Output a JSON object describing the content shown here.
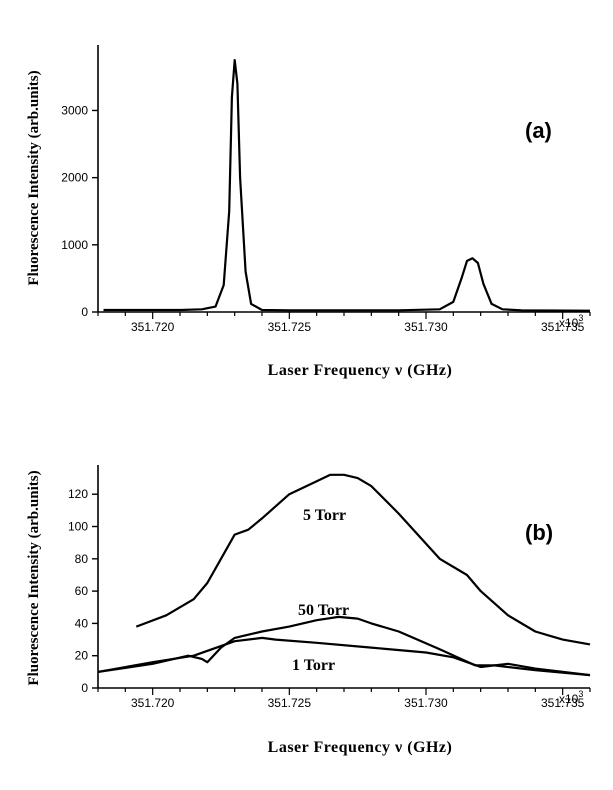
{
  "chart_data": [
    {
      "type": "line",
      "panel_label": "(a)",
      "xlabel": "Laser  Frequency  ν  (GHz)",
      "ylabel": "Fluorescence Intensity (arb.units)",
      "xlim": [
        351.718,
        351.736
      ],
      "ylim": [
        0,
        3900
      ],
      "x_ticks": [
        "351.720",
        "351.725",
        "351.730",
        "351.735"
      ],
      "x_multiplier": "x10",
      "x_multiplier_exp": "3",
      "y_ticks": [
        "0",
        "1000",
        "2000",
        "3000"
      ],
      "series": [
        {
          "x": [
            351.7182,
            351.72,
            351.721,
            351.7218,
            351.7223,
            351.7226,
            351.7228,
            351.7229,
            351.723,
            351.7231,
            351.7232,
            351.7234,
            351.7236,
            351.724,
            351.725,
            351.727,
            351.729,
            351.7305,
            351.731,
            351.7313,
            351.7315,
            351.7317,
            351.7319,
            351.7321,
            351.7324,
            351.7328,
            351.7335,
            351.736
          ],
          "y": [
            30,
            30,
            30,
            40,
            80,
            400,
            1500,
            3200,
            3750,
            3400,
            2000,
            600,
            120,
            30,
            25,
            25,
            25,
            40,
            150,
            500,
            760,
            800,
            730,
            420,
            120,
            40,
            25,
            20
          ]
        }
      ]
    },
    {
      "type": "line",
      "panel_label": "(b)",
      "xlabel": "Laser  Frequency  ν  (GHz)",
      "ylabel": "Fluorescence Intensity (arb.units)",
      "xlim": [
        351.718,
        351.736
      ],
      "ylim": [
        0,
        135
      ],
      "x_ticks": [
        "351.720",
        "351.725",
        "351.730",
        "351.735"
      ],
      "x_multiplier": "x10",
      "x_multiplier_exp": "3",
      "y_ticks": [
        "0",
        "20",
        "40",
        "60",
        "80",
        "100",
        "120"
      ],
      "series": [
        {
          "name": "5  Torr",
          "x": [
            351.7194,
            351.7205,
            351.7215,
            351.722,
            351.7225,
            351.723,
            351.7235,
            351.724,
            351.725,
            351.726,
            351.7265,
            351.727,
            351.7275,
            351.728,
            351.729,
            351.7305,
            351.7315,
            351.732,
            351.733,
            351.734,
            351.735,
            351.736
          ],
          "y": [
            38,
            45,
            55,
            65,
            80,
            95,
            98,
            105,
            120,
            128,
            132,
            132,
            130,
            125,
            108,
            80,
            70,
            60,
            45,
            35,
            30,
            27
          ]
        },
        {
          "name": "50  Torr",
          "x": [
            351.718,
            351.72,
            351.7213,
            351.7218,
            351.722,
            351.7225,
            351.723,
            351.7235,
            351.724,
            351.725,
            351.726,
            351.7268,
            351.7275,
            351.728,
            351.729,
            351.7305,
            351.7318,
            351.7325,
            351.734,
            351.736
          ],
          "y": [
            10,
            15,
            20,
            18,
            16,
            25,
            31,
            33,
            35,
            38,
            42,
            44,
            43,
            40,
            35,
            24,
            14,
            14,
            11,
            8
          ]
        },
        {
          "name": "1  Torr",
          "x": [
            351.718,
            351.72,
            351.7215,
            351.723,
            351.724,
            351.7245,
            351.726,
            351.728,
            351.73,
            351.731,
            351.732,
            351.733,
            351.734,
            351.736
          ],
          "y": [
            10,
            16,
            20,
            29,
            31,
            30,
            28,
            25,
            22,
            19,
            13,
            15,
            12,
            8
          ]
        }
      ]
    }
  ]
}
